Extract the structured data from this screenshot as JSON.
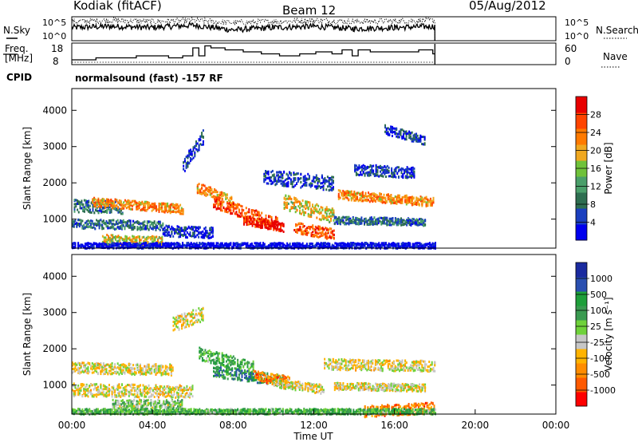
{
  "header": {
    "station": "Kodiak (fitACF)",
    "beam": "Beam 12",
    "date": "05/Aug/2012"
  },
  "panels": {
    "nsky_label": "N.Sky",
    "nsearch_label": "N.Search",
    "nsky_ticks": [
      "10^5",
      "10^0"
    ],
    "freq_label_line1": "Freq.",
    "freq_label_line2": "[MHz]",
    "freq_ticks": [
      "18",
      "8"
    ],
    "nave_label": "Nave",
    "nave_ticks": [
      "60",
      "0"
    ],
    "cpid_label": "CPID",
    "cpid_text": "normalsound (fast) -157 RF"
  },
  "colors": {
    "power": [
      "#0000ee",
      "#1a3fbf",
      "#2e6e50",
      "#4a9f6a",
      "#6fc23a",
      "#f0a820",
      "#ff7a00",
      "#ff4400",
      "#e80000"
    ],
    "velocity_neg": [
      "#ff0000",
      "#ff5a00",
      "#ff8c00",
      "#ffb300"
    ],
    "velocity_zero": "#c6c6c6",
    "velocity_pos": [
      "#6fd23a",
      "#3a9a50",
      "#1e9f3a",
      "#2a4fb0",
      "#1a2a9f"
    ]
  },
  "chart_data": [
    {
      "type": "line",
      "name": "nsky-nsearch-panel",
      "ylabel": "N.Sky",
      "ylabel_right": "N.Search",
      "yticks": [
        "10^5",
        "10^0"
      ],
      "series": [
        {
          "name": "N.Sky",
          "x": [
            0,
            2,
            4,
            6,
            8,
            10,
            12,
            14,
            16,
            18
          ],
          "y": [
            0.55,
            0.6,
            0.55,
            0.65,
            0.45,
            0.55,
            0.6,
            0.5,
            0.55,
            0.6
          ]
        },
        {
          "name": "N.Search",
          "x": [
            0,
            2,
            4,
            6,
            8,
            10,
            12,
            14,
            16,
            18
          ],
          "y": [
            0.8,
            0.85,
            0.8,
            0.85,
            0.75,
            0.8,
            0.85,
            0.8,
            0.82,
            0.85
          ]
        }
      ],
      "xlim": [
        0,
        24
      ],
      "ylim": [
        0,
        1
      ]
    },
    {
      "type": "line",
      "name": "freq-nave-panel",
      "ylabel": "Freq. [MHz]",
      "ylabel_right": "Nave",
      "yticks": [
        18,
        8
      ],
      "yticks_right": [
        60,
        0
      ],
      "series": [
        {
          "name": "Freq.",
          "x": [
            0,
            1.2,
            2.4,
            3.2,
            4.0,
            4.8,
            5.5,
            6.0,
            6.3,
            6.6,
            6.9,
            7.6,
            8.5,
            9.4,
            10.3,
            10.8,
            11.3,
            12.1,
            12.9,
            13.4,
            13.9,
            14.2,
            14.8,
            16.3,
            17.2,
            17.9,
            18.0
          ],
          "y": [
            10,
            11,
            11,
            12,
            12,
            11,
            12,
            16,
            12,
            17,
            16,
            15,
            14,
            13,
            12,
            12,
            13,
            14,
            13,
            15,
            12,
            15,
            14,
            14,
            15,
            13,
            18
          ]
        },
        {
          "name": "Nave",
          "x": [
            0,
            18
          ],
          "y": [
            2,
            2
          ]
        }
      ],
      "xlim": [
        0,
        24
      ],
      "ylim": [
        8,
        18
      ]
    },
    {
      "type": "heatmap",
      "name": "power-panel",
      "ylabel": "Slant Range [km]",
      "yticks": [
        1000,
        2000,
        3000,
        4000
      ],
      "ylim": [
        200,
        4600
      ],
      "xlim": [
        0,
        24
      ],
      "colorbar_label": "Power [dB]",
      "colorbar_ticks": [
        4,
        8,
        12,
        16,
        20,
        24,
        28
      ]
    },
    {
      "type": "heatmap",
      "name": "velocity-panel",
      "ylabel": "Slant Range [km]",
      "yticks": [
        1000,
        2000,
        3000,
        4000
      ],
      "ylim": [
        200,
        4600
      ],
      "xlim": [
        0,
        24
      ],
      "xlabel": "Time UT",
      "xticks": [
        "00:00",
        "04:00",
        "08:00",
        "12:00",
        "16:00",
        "20:00",
        "00:00"
      ],
      "colorbar_label": "Velocity [m s⁻¹]",
      "colorbar_ticks": [
        "1000",
        "500",
        "100",
        "25",
        "-25",
        "-100",
        "-500",
        "-1000"
      ]
    }
  ]
}
